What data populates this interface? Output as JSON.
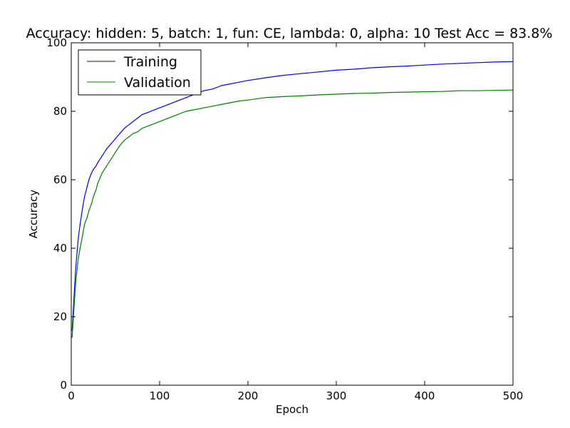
{
  "chart_data": {
    "type": "line",
    "title": "Accuracy: hidden: 5, batch: 1, fun: CE, lambda: 0, alpha: 10  Test Acc = 83.8%",
    "xlabel": "Epoch",
    "ylabel": "Accuracy",
    "xlim": [
      0,
      500
    ],
    "ylim": [
      0,
      100
    ],
    "xticks": [
      0,
      100,
      200,
      300,
      400,
      500
    ],
    "yticks": [
      0,
      20,
      40,
      60,
      80,
      100
    ],
    "grid": false,
    "legend_position": "top-left",
    "series": [
      {
        "name": "Training",
        "color": "#0000ff",
        "x": [
          1,
          3,
          5,
          8,
          10,
          13,
          15,
          18,
          20,
          23,
          25,
          28,
          30,
          35,
          40,
          45,
          50,
          55,
          60,
          65,
          70,
          75,
          80,
          85,
          90,
          95,
          100,
          110,
          120,
          130,
          140,
          150,
          160,
          170,
          180,
          190,
          200,
          220,
          240,
          260,
          280,
          300,
          320,
          340,
          360,
          380,
          400,
          420,
          440,
          460,
          480,
          500
        ],
        "y": [
          16,
          25,
          34,
          43,
          47,
          52,
          55,
          58,
          60,
          62,
          63,
          64,
          65,
          67,
          69,
          70.5,
          72,
          73.5,
          75,
          76,
          77,
          78,
          79,
          79.5,
          80,
          80.5,
          81,
          82,
          83,
          84,
          85,
          86,
          86.5,
          87.5,
          88,
          88.5,
          89,
          89.8,
          90.5,
          91,
          91.5,
          92,
          92.3,
          92.7,
          93,
          93.2,
          93.5,
          93.8,
          94,
          94.2,
          94.4,
          94.5
        ]
      },
      {
        "name": "Validation",
        "color": "#008000",
        "x": [
          1,
          3,
          5,
          8,
          10,
          13,
          15,
          18,
          20,
          23,
          25,
          28,
          30,
          35,
          40,
          45,
          50,
          55,
          60,
          65,
          70,
          75,
          80,
          85,
          90,
          95,
          100,
          110,
          120,
          130,
          140,
          150,
          160,
          170,
          180,
          190,
          200,
          220,
          240,
          260,
          280,
          300,
          320,
          340,
          360,
          380,
          400,
          420,
          440,
          460,
          480,
          500
        ],
        "y": [
          14,
          22,
          30,
          37,
          40,
          44,
          47,
          49,
          51,
          53,
          55,
          57,
          59,
          62,
          64,
          66,
          68,
          70,
          71.5,
          72.5,
          73.5,
          74,
          75,
          75.5,
          76,
          76.5,
          77,
          78,
          79,
          80,
          80.5,
          81,
          81.5,
          82,
          82.5,
          83,
          83.3,
          84,
          84.3,
          84.5,
          84.8,
          85,
          85.2,
          85.3,
          85.5,
          85.6,
          85.7,
          85.8,
          86,
          86,
          86.1,
          86.2
        ]
      }
    ]
  }
}
